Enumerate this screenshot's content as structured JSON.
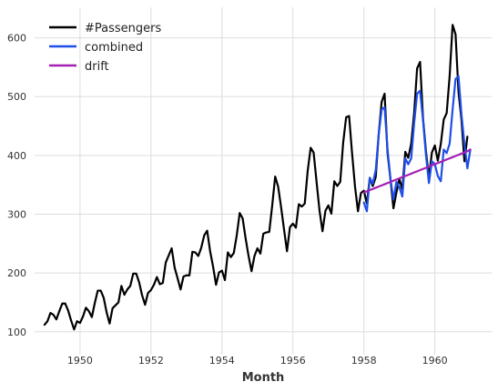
{
  "chart_data": {
    "type": "line",
    "xlabel": "Month",
    "ylabel": "",
    "title": "",
    "xlim": [
      1948.72,
      1961.6
    ],
    "ylim": [
      61,
      652
    ],
    "x_ticks": [
      1950,
      1952,
      1954,
      1956,
      1958,
      1960
    ],
    "y_ticks": [
      100,
      200,
      300,
      400,
      500,
      600
    ],
    "grid": true,
    "legend_position": "top-left",
    "series": [
      {
        "name": "#Passengers",
        "color": "#000000",
        "x_start": 1949.0,
        "x_step": 0.083333,
        "values": [
          112,
          118,
          132,
          129,
          121,
          135,
          148,
          148,
          136,
          119,
          104,
          118,
          115,
          126,
          141,
          135,
          125,
          149,
          170,
          170,
          158,
          133,
          114,
          140,
          145,
          150,
          178,
          163,
          172,
          178,
          199,
          199,
          184,
          162,
          146,
          166,
          171,
          180,
          193,
          181,
          183,
          218,
          230,
          242,
          209,
          191,
          172,
          194,
          196,
          196,
          236,
          235,
          229,
          243,
          264,
          272,
          237,
          211,
          180,
          201,
          204,
          188,
          235,
          227,
          234,
          264,
          302,
          293,
          259,
          229,
          203,
          229,
          242,
          233,
          267,
          269,
          270,
          315,
          364,
          347,
          312,
          274,
          237,
          278,
          284,
          277,
          317,
          313,
          318,
          374,
          413,
          405,
          355,
          306,
          271,
          306,
          315,
          301,
          356,
          348,
          355,
          422,
          465,
          467,
          404,
          347,
          305,
          336,
          340,
          318,
          362,
          348,
          363,
          435,
          491,
          505,
          404,
          359,
          310,
          337,
          360,
          342,
          406,
          396,
          420,
          472,
          548,
          559,
          463,
          407,
          362,
          405,
          417,
          391,
          419,
          461,
          472,
          535,
          622,
          606,
          508,
          461,
          390,
          432
        ]
      },
      {
        "name": "combined",
        "color": "#1f4ee8",
        "x_start": 1958.0,
        "x_step": 0.083333,
        "values": [
          320,
          305,
          362,
          352,
          375,
          435,
          478,
          482,
          410,
          360,
          325,
          355,
          346,
          330,
          395,
          385,
          395,
          455,
          505,
          510,
          460,
          400,
          353,
          390,
          385,
          365,
          356,
          410,
          404,
          420,
          478,
          530,
          535,
          470,
          420,
          378,
          410
        ]
      },
      {
        "name": "drift",
        "color": "#a31fb3",
        "x_start": 1958.0,
        "x_step": 0.083333,
        "values": [
          337,
          339,
          341,
          343,
          345,
          347,
          349,
          351,
          353,
          355,
          357,
          359,
          361,
          363,
          365,
          367,
          369,
          371,
          373,
          375,
          377,
          379,
          381,
          383,
          385,
          387,
          389,
          391,
          393,
          395,
          397,
          399,
          401,
          403,
          405,
          407,
          410
        ]
      }
    ]
  }
}
